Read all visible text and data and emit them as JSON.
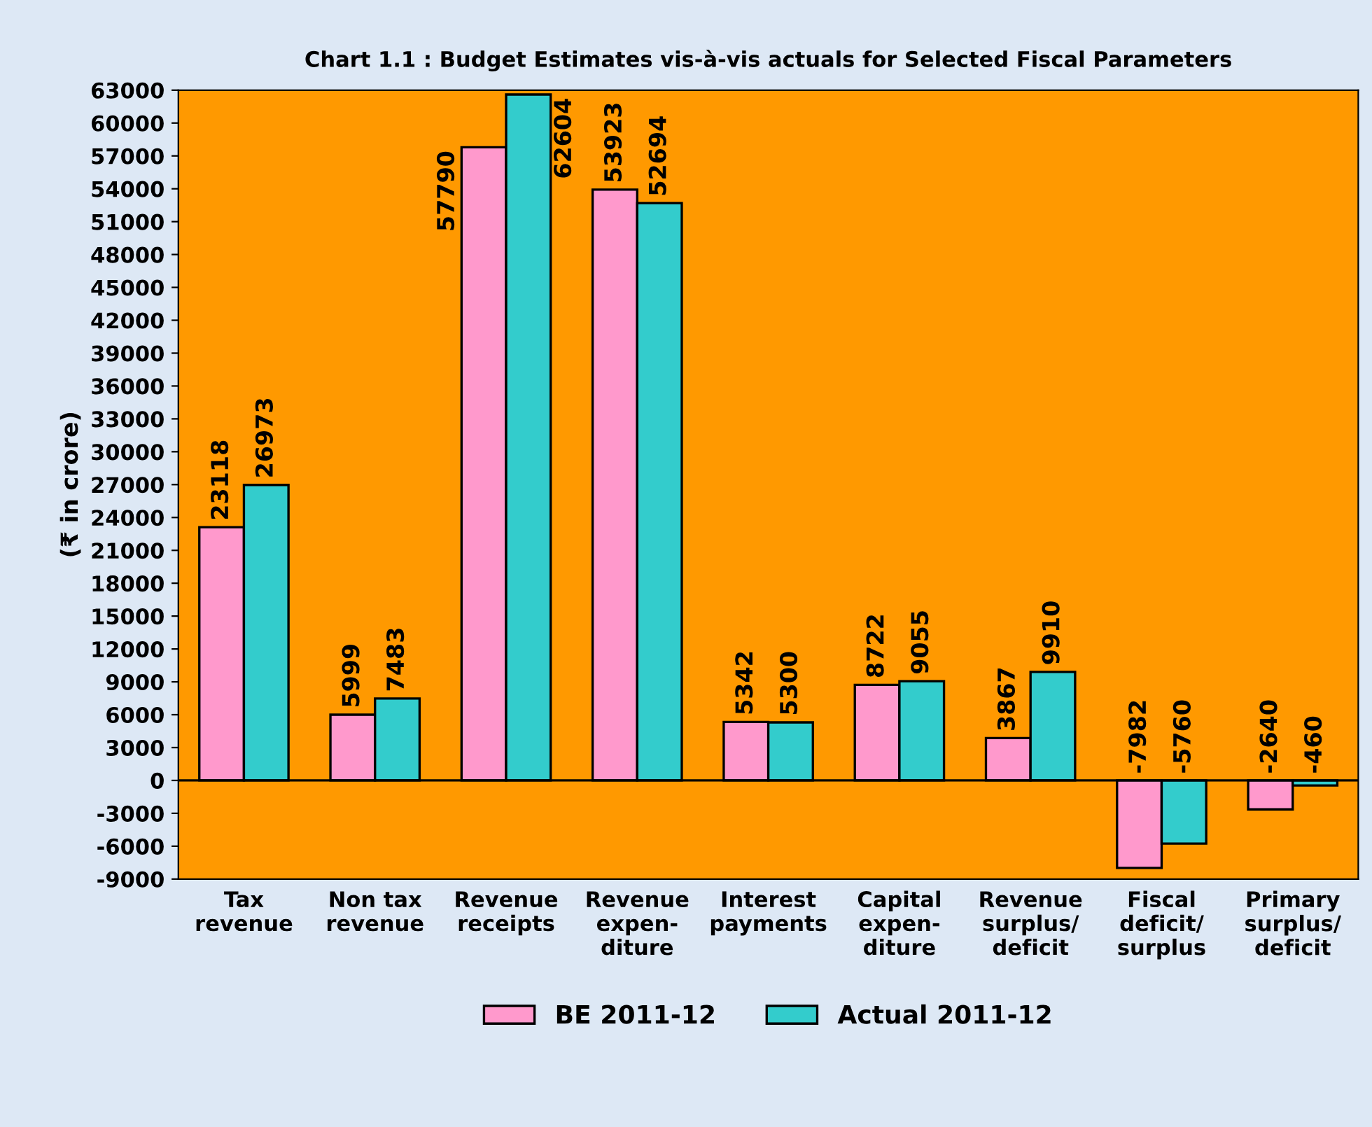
{
  "chart_data": {
    "type": "bar",
    "title": "Chart 1.1 : Budget Estimates vis-à-vis actuals for Selected Fiscal Parameters",
    "ylabel": "(₹ in crore)",
    "categories": [
      "Tax\nrevenue",
      "Non tax\nrevenue",
      "Revenue\nreceipts",
      "Revenue\nexpen-\nditure",
      "Interest\npayments",
      "Capital\nexpen-\nditure",
      "Revenue\nsurplus/\ndeficit",
      "Fiscal\ndeficit/\nsurplus",
      "Primary\nsurplus/\ndeficit"
    ],
    "series": [
      {
        "name": "BE 2011-12",
        "color": "#ff99cc",
        "values": [
          23118,
          5999,
          57790,
          53923,
          5342,
          8722,
          3867,
          -7982,
          -2640
        ]
      },
      {
        "name": "Actual 2011-12",
        "color": "#33cccc",
        "values": [
          26973,
          7483,
          62604,
          52694,
          5300,
          9055,
          9910,
          -5760,
          -460
        ]
      }
    ],
    "ylim": [
      -9000,
      63000
    ],
    "yticks": [
      -9000,
      -6000,
      -3000,
      0,
      3000,
      6000,
      9000,
      12000,
      15000,
      18000,
      21000,
      24000,
      27000,
      30000,
      33000,
      36000,
      39000,
      42000,
      45000,
      48000,
      51000,
      54000,
      57000,
      60000,
      63000
    ],
    "data_labels": true,
    "legend": "bottom"
  }
}
